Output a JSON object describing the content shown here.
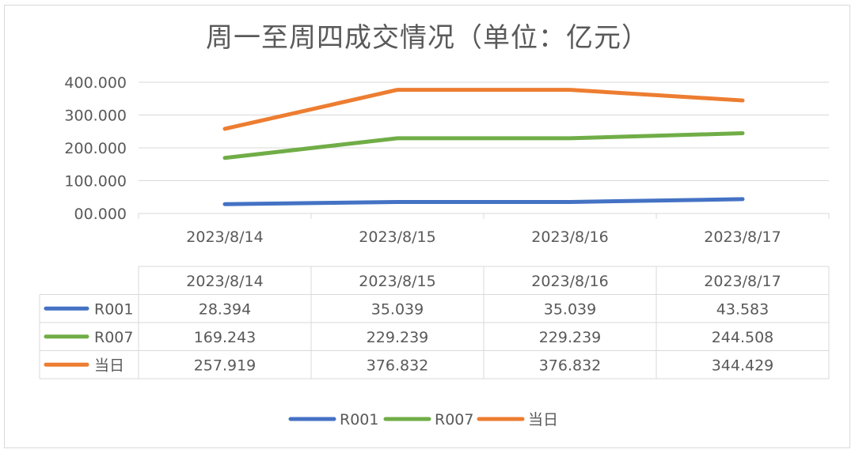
{
  "chart_data": {
    "type": "line",
    "title": "周一至周四成交情况（单位：亿元）",
    "categories": [
      "2023/8/14",
      "2023/8/15",
      "2023/8/16",
      "2023/8/17"
    ],
    "series": [
      {
        "name": "R001",
        "color": "#4472c4",
        "values": [
          28.394,
          35.039,
          35.039,
          43.583
        ],
        "labels": [
          "28.394",
          "35.039",
          "35.039",
          "43.583"
        ]
      },
      {
        "name": "R007",
        "color": "#70ad47",
        "values": [
          169.243,
          229.239,
          229.239,
          244.508
        ],
        "labels": [
          "169.243",
          "229.239",
          "229.239",
          "244.508"
        ]
      },
      {
        "name": "当日",
        "color": "#ed7d31",
        "values": [
          257.919,
          376.832,
          376.832,
          344.429
        ],
        "labels": [
          "257.919",
          "376.832",
          "376.832",
          "344.429"
        ]
      }
    ],
    "yticks": [
      "00.000",
      "100.000",
      "200.000",
      "300.000",
      "400.000"
    ],
    "ylim": [
      0,
      400
    ],
    "grid": true,
    "legend": "bottom",
    "data_table": true
  }
}
